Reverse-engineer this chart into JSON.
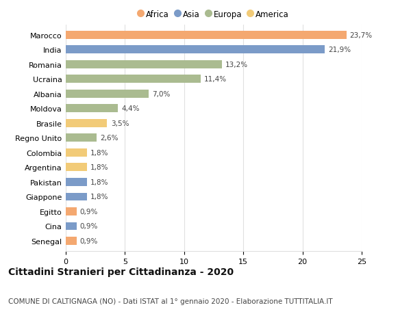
{
  "countries": [
    "Marocco",
    "India",
    "Romania",
    "Ucraina",
    "Albania",
    "Moldova",
    "Brasile",
    "Regno Unito",
    "Colombia",
    "Argentina",
    "Pakistan",
    "Giappone",
    "Egitto",
    "Cina",
    "Senegal"
  ],
  "values": [
    23.7,
    21.9,
    13.2,
    11.4,
    7.0,
    4.4,
    3.5,
    2.6,
    1.8,
    1.8,
    1.8,
    1.8,
    0.9,
    0.9,
    0.9
  ],
  "labels": [
    "23,7%",
    "21,9%",
    "13,2%",
    "11,4%",
    "7,0%",
    "4,4%",
    "3,5%",
    "2,6%",
    "1,8%",
    "1,8%",
    "1,8%",
    "1,8%",
    "0,9%",
    "0,9%",
    "0,9%"
  ],
  "continents": [
    "Africa",
    "Asia",
    "Europa",
    "Europa",
    "Europa",
    "Europa",
    "America",
    "Europa",
    "America",
    "America",
    "Asia",
    "Asia",
    "Africa",
    "Asia",
    "Africa"
  ],
  "colors": {
    "Africa": "#F4A870",
    "Asia": "#7B9BC8",
    "Europa": "#AABB90",
    "America": "#F2CB78"
  },
  "legend_order": [
    "Africa",
    "Asia",
    "Europa",
    "America"
  ],
  "title": "Cittadini Stranieri per Cittadinanza - 2020",
  "subtitle": "COMUNE DI CALTIGNAGA (NO) - Dati ISTAT al 1° gennaio 2020 - Elaborazione TUTTITALIA.IT",
  "xlim": [
    0,
    25
  ],
  "xticks": [
    0,
    5,
    10,
    15,
    20,
    25
  ],
  "background_color": "#ffffff",
  "grid_color": "#e0e0e0",
  "bar_height": 0.55,
  "title_fontsize": 10,
  "subtitle_fontsize": 7.5,
  "label_fontsize": 7.5,
  "tick_fontsize": 8,
  "legend_fontsize": 8.5
}
